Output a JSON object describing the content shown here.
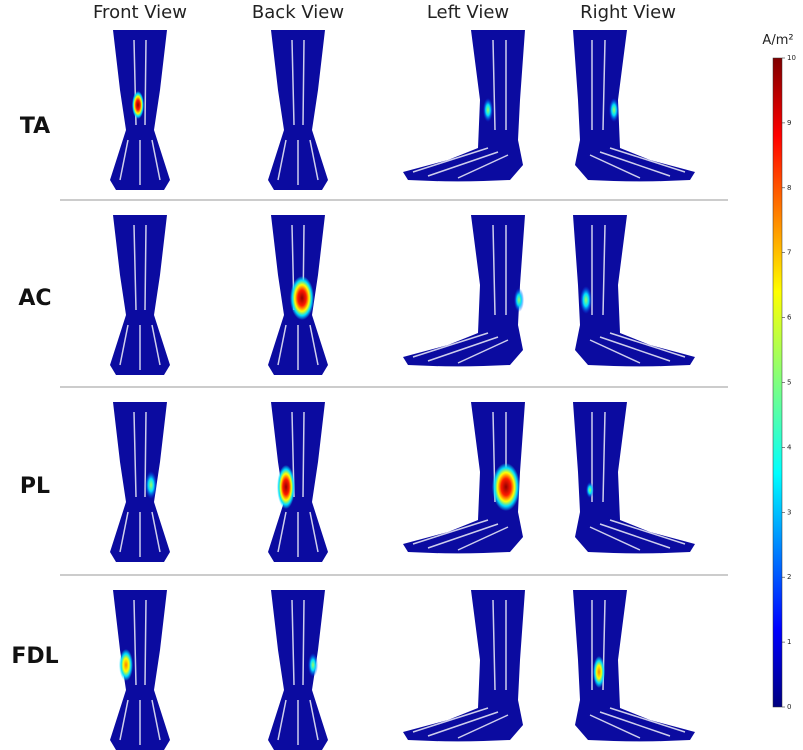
{
  "columns": [
    "Front View",
    "Back View",
    "Left View",
    "Right View"
  ],
  "rows": [
    "TA",
    "AC",
    "PL",
    "FDL"
  ],
  "colorbar": {
    "unit": "A/m²",
    "lim": [
      0,
      10
    ],
    "ticks": [
      0,
      1,
      2,
      3,
      4,
      5,
      6,
      7,
      8,
      9,
      10
    ]
  }
}
